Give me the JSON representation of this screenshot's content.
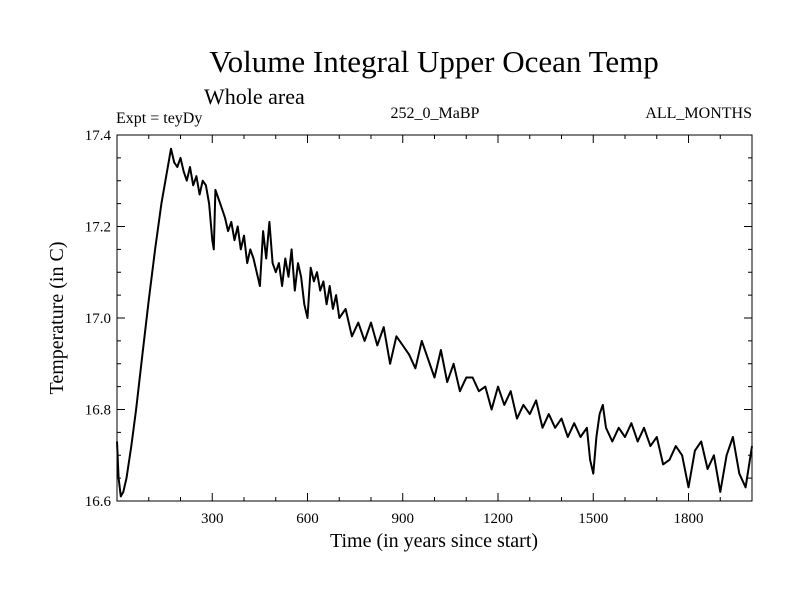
{
  "chart_data": {
    "type": "line",
    "title": "Volume Integral Upper Ocean Temp",
    "subtitle": "Whole area",
    "experiment": "Expt = teyDy",
    "case_label": "252_0_MaBP",
    "months_label": "ALL_MONTHS",
    "xlabel": "Time (in years since start)",
    "ylabel": "Temperature (in C)",
    "xlim": [
      0,
      2000
    ],
    "ylim": [
      16.6,
      17.4
    ],
    "xticks": [
      300,
      600,
      900,
      1200,
      1500,
      1800
    ],
    "xtick_labels": [
      "300",
      "600",
      "900",
      "1200",
      "1500",
      "1800"
    ],
    "yticks": [
      16.6,
      16.8,
      17.0,
      17.2,
      17.4
    ],
    "ytick_labels": [
      "16.6",
      "16.8",
      "17.0",
      "17.2",
      "17.4"
    ],
    "series": [
      {
        "name": "Volume integral upper ocean temperature",
        "x": [
          0,
          5,
          12,
          20,
          30,
          45,
          60,
          80,
          100,
          120,
          140,
          160,
          170,
          180,
          190,
          200,
          210,
          220,
          230,
          240,
          250,
          260,
          270,
          280,
          290,
          300,
          305,
          310,
          320,
          330,
          340,
          350,
          360,
          370,
          380,
          390,
          400,
          410,
          420,
          430,
          440,
          450,
          460,
          470,
          480,
          490,
          500,
          510,
          520,
          530,
          540,
          550,
          560,
          570,
          580,
          590,
          600,
          610,
          620,
          630,
          640,
          650,
          660,
          670,
          680,
          690,
          700,
          720,
          740,
          760,
          780,
          800,
          820,
          840,
          860,
          880,
          900,
          920,
          940,
          960,
          980,
          1000,
          1020,
          1040,
          1060,
          1080,
          1100,
          1120,
          1140,
          1160,
          1180,
          1200,
          1220,
          1240,
          1260,
          1280,
          1300,
          1320,
          1340,
          1360,
          1380,
          1400,
          1420,
          1440,
          1460,
          1480,
          1490,
          1500,
          1510,
          1520,
          1530,
          1540,
          1560,
          1580,
          1600,
          1620,
          1640,
          1660,
          1680,
          1700,
          1720,
          1740,
          1760,
          1780,
          1800,
          1820,
          1840,
          1860,
          1880,
          1900,
          1920,
          1940,
          1960,
          1980,
          2000
        ],
        "values": [
          16.73,
          16.65,
          16.61,
          16.62,
          16.65,
          16.72,
          16.8,
          16.92,
          17.04,
          17.15,
          17.25,
          17.33,
          17.37,
          17.34,
          17.33,
          17.35,
          17.32,
          17.3,
          17.33,
          17.29,
          17.31,
          17.27,
          17.3,
          17.29,
          17.25,
          17.17,
          17.15,
          17.28,
          17.26,
          17.24,
          17.22,
          17.19,
          17.21,
          17.17,
          17.2,
          17.15,
          17.18,
          17.12,
          17.15,
          17.13,
          17.1,
          17.07,
          17.19,
          17.13,
          17.21,
          17.12,
          17.1,
          17.12,
          17.07,
          17.13,
          17.09,
          17.15,
          17.06,
          17.12,
          17.09,
          17.03,
          17.0,
          17.11,
          17.08,
          17.1,
          17.06,
          17.08,
          17.03,
          17.07,
          17.02,
          17.05,
          17.0,
          17.02,
          16.96,
          16.99,
          16.95,
          16.99,
          16.94,
          16.98,
          16.9,
          16.96,
          16.94,
          16.92,
          16.89,
          16.95,
          16.91,
          16.87,
          16.93,
          16.86,
          16.9,
          16.84,
          16.87,
          16.87,
          16.84,
          16.85,
          16.8,
          16.85,
          16.81,
          16.84,
          16.78,
          16.81,
          16.79,
          16.82,
          16.76,
          16.79,
          16.76,
          16.78,
          16.74,
          16.77,
          16.74,
          16.76,
          16.69,
          16.66,
          16.74,
          16.79,
          16.81,
          16.76,
          16.73,
          16.76,
          16.74,
          16.77,
          16.73,
          16.76,
          16.72,
          16.74,
          16.68,
          16.69,
          16.72,
          16.7,
          16.63,
          16.71,
          16.73,
          16.67,
          16.7,
          16.62,
          16.7,
          16.74,
          16.66,
          16.63,
          16.72
        ]
      }
    ]
  }
}
